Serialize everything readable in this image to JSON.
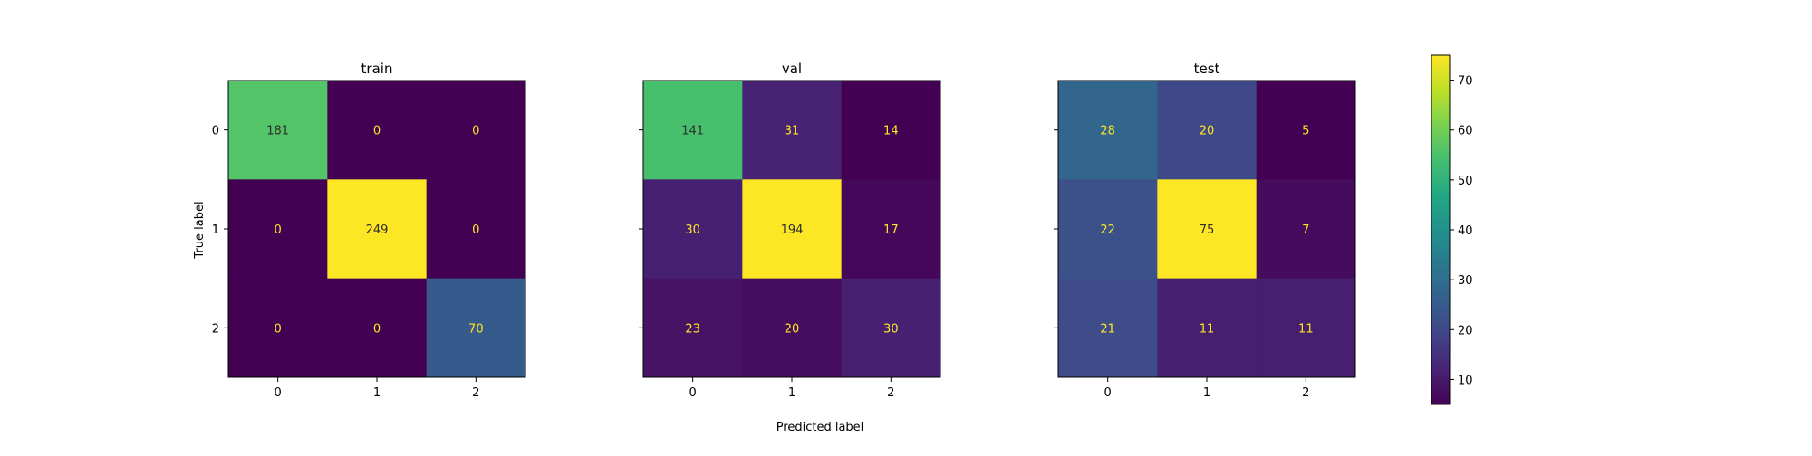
{
  "chart_data": {
    "type": "heatmap",
    "shared_xlabel": "Predicted label",
    "shared_ylabel": "True label",
    "labels": [
      "0",
      "1",
      "2"
    ],
    "panels": [
      {
        "title": "train",
        "matrix": [
          [
            181,
            0,
            0
          ],
          [
            0,
            249,
            0
          ],
          [
            0,
            0,
            70
          ]
        ]
      },
      {
        "title": "val",
        "matrix": [
          [
            141,
            31,
            14
          ],
          [
            30,
            194,
            17
          ],
          [
            23,
            20,
            30
          ]
        ]
      },
      {
        "title": "test",
        "matrix": [
          [
            28,
            20,
            5
          ],
          [
            22,
            75,
            7
          ],
          [
            21,
            11,
            11
          ]
        ]
      }
    ],
    "colorbar": {
      "colormap": "viridis",
      "range": [
        5,
        75
      ],
      "ticks": [
        10,
        20,
        30,
        40,
        50,
        60,
        70
      ]
    },
    "text_colors": {
      "light": "#fde725",
      "dark": "#2d2d2d"
    }
  }
}
